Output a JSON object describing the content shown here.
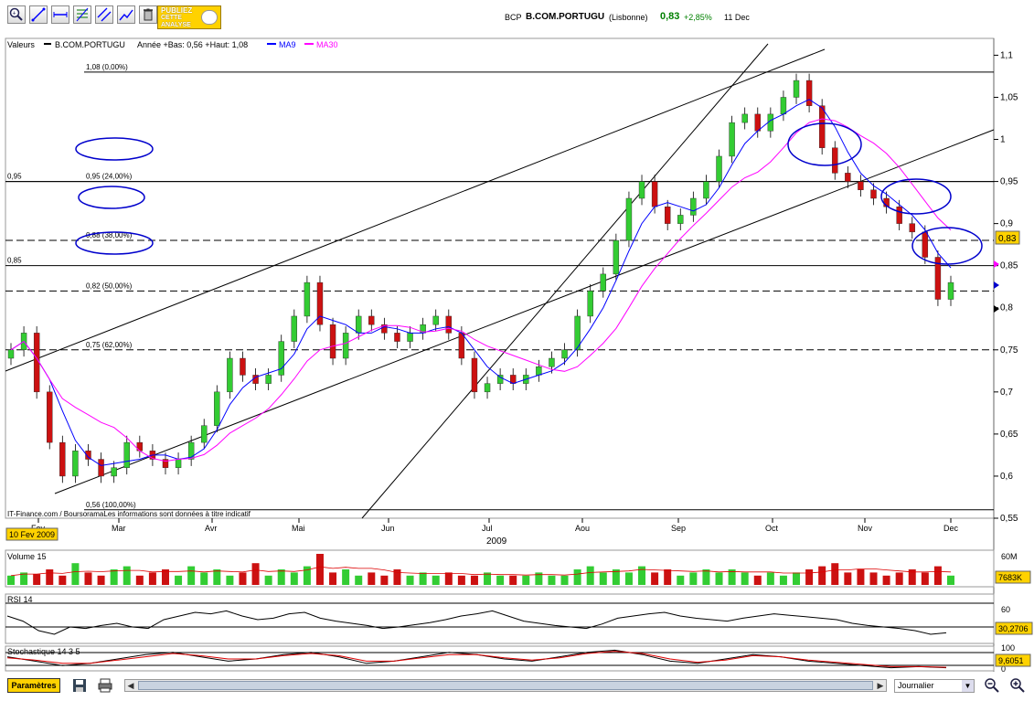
{
  "toolbar": {
    "icons": [
      "zoom-icon",
      "draw-line-icon",
      "horizontal-line-icon",
      "fibonacci-icon",
      "parallel-channel-icon",
      "trend-icon",
      "trash-icon"
    ],
    "promo_line1": "PUBLIEZ",
    "promo_line2": "CETTE",
    "promo_line3": "ANALYSE"
  },
  "header": {
    "code": "BCP",
    "name": "B.COM.PORTUGU",
    "market": "(Lisbonne)",
    "price": "0,83",
    "change": "+2,85%",
    "date": "11 Dec",
    "price_color": "#008000"
  },
  "legend": {
    "valeurs": "Valeurs",
    "series_name": "B.COM.PORTUGU",
    "range_text": "Année +Bas: 0,56 +Haut: 1,08",
    "ma9": "MA9",
    "ma30": "MA30",
    "ma9_color": "#0000ff",
    "ma30_color": "#ff00ff"
  },
  "chart_data": [
    {
      "type": "candlestick",
      "title": "",
      "xlabel": "2009",
      "x_tick_labels": [
        "Fev",
        "Mar",
        "Avr",
        "Mai",
        "Jun",
        "Jul",
        "Aou",
        "Sep",
        "Oct",
        "Nov",
        "Dec"
      ],
      "y_tick_labels": [
        "1,1",
        "1,05",
        "1",
        "0,95",
        "0,9",
        "0,85",
        "0,8",
        "0,75",
        "0,7",
        "0,65",
        "0,6",
        "0,55"
      ],
      "ylim": [
        0.55,
        1.12
      ],
      "last_price_label": "0,83",
      "date_box": "10 Fev 2009",
      "source_note": "IT-Finance.com / BoursoramaLes informations sont données à titre indicatif",
      "fibonacci_levels": [
        {
          "value": 1.08,
          "label": "1,08 (0,00%)"
        },
        {
          "value": 0.95,
          "label": "0,95 (24,00%)"
        },
        {
          "value": 0.88,
          "label": "0,88 (38,00%)"
        },
        {
          "value": 0.82,
          "label": "0,82 (50,00%)"
        },
        {
          "value": 0.75,
          "label": "0,75 (62,00%)"
        },
        {
          "value": 0.56,
          "label": "0,56 (100,00%)"
        }
      ],
      "horizontal_levels": [
        {
          "value": 0.95,
          "label": "0,95"
        },
        {
          "value": 0.85,
          "label": "0,85"
        }
      ],
      "close_series_approx": [
        0.75,
        0.77,
        0.7,
        0.64,
        0.6,
        0.63,
        0.62,
        0.6,
        0.61,
        0.64,
        0.63,
        0.62,
        0.61,
        0.62,
        0.64,
        0.66,
        0.7,
        0.74,
        0.72,
        0.71,
        0.72,
        0.76,
        0.79,
        0.83,
        0.78,
        0.74,
        0.77,
        0.79,
        0.78,
        0.77,
        0.76,
        0.77,
        0.78,
        0.79,
        0.77,
        0.74,
        0.7,
        0.71,
        0.72,
        0.71,
        0.72,
        0.73,
        0.74,
        0.75,
        0.79,
        0.82,
        0.84,
        0.88,
        0.93,
        0.95,
        0.92,
        0.9,
        0.91,
        0.93,
        0.95,
        0.98,
        1.02,
        1.03,
        1.01,
        1.03,
        1.05,
        1.07,
        1.04,
        0.99,
        0.96,
        0.95,
        0.94,
        0.93,
        0.92,
        0.9,
        0.89,
        0.86,
        0.81,
        0.83
      ]
    },
    {
      "type": "bar",
      "title": "Volume 15",
      "y_tick_labels": [
        "60M"
      ],
      "last_value_label": "7683K",
      "values_relative": [
        0.3,
        0.4,
        0.35,
        0.5,
        0.3,
        0.7,
        0.4,
        0.3,
        0.5,
        0.6,
        0.3,
        0.4,
        0.5,
        0.3,
        0.6,
        0.4,
        0.5,
        0.3,
        0.4,
        0.7,
        0.3,
        0.5,
        0.4,
        0.6,
        1.0,
        0.4,
        0.5,
        0.3,
        0.4,
        0.3,
        0.5,
        0.3,
        0.4,
        0.3,
        0.4,
        0.3,
        0.3,
        0.4,
        0.3,
        0.3,
        0.3,
        0.4,
        0.3,
        0.3,
        0.5,
        0.6,
        0.4,
        0.5,
        0.4,
        0.6,
        0.4,
        0.5,
        0.3,
        0.4,
        0.5,
        0.4,
        0.5,
        0.4,
        0.3,
        0.4,
        0.3,
        0.4,
        0.5,
        0.6,
        0.7,
        0.4,
        0.5,
        0.4,
        0.3,
        0.4,
        0.5,
        0.4,
        0.6,
        0.3
      ]
    },
    {
      "type": "line",
      "title": "RSI 14",
      "y_tick_labels": [
        "60"
      ],
      "last_value_label": "30,2706",
      "values": [
        55,
        48,
        35,
        30,
        40,
        38,
        42,
        45,
        40,
        38,
        50,
        55,
        60,
        58,
        62,
        55,
        50,
        52,
        58,
        60,
        52,
        48,
        45,
        42,
        38,
        40,
        43,
        46,
        50,
        55,
        58,
        62,
        55,
        48,
        45,
        42,
        40,
        38,
        44,
        52,
        55,
        58,
        60,
        55,
        52,
        50,
        48,
        52,
        55,
        58,
        56,
        54,
        52,
        50,
        45,
        42,
        40,
        38,
        35,
        30,
        32
      ]
    },
    {
      "type": "line",
      "title": "Stochastique 14 3 5",
      "y_tick_labels": [
        "100",
        "0"
      ],
      "last_value_label": "9,6051",
      "series": [
        {
          "values": [
            60,
            40,
            20,
            30,
            50,
            70,
            80,
            60,
            40,
            50,
            70,
            80,
            60,
            30,
            40,
            60,
            80,
            70,
            50,
            40,
            60,
            80,
            90,
            70,
            40,
            30,
            50,
            70,
            60,
            40,
            30,
            20,
            10,
            15,
            10
          ]
        },
        {
          "values": [
            55,
            45,
            30,
            30,
            45,
            60,
            75,
            65,
            50,
            50,
            65,
            75,
            65,
            40,
            40,
            55,
            70,
            70,
            55,
            45,
            55,
            75,
            85,
            75,
            50,
            35,
            45,
            65,
            60,
            45,
            35,
            25,
            15,
            15,
            12
          ]
        }
      ]
    }
  ],
  "bottom": {
    "params_label": "Paramètres",
    "period_label": "Journalier"
  }
}
